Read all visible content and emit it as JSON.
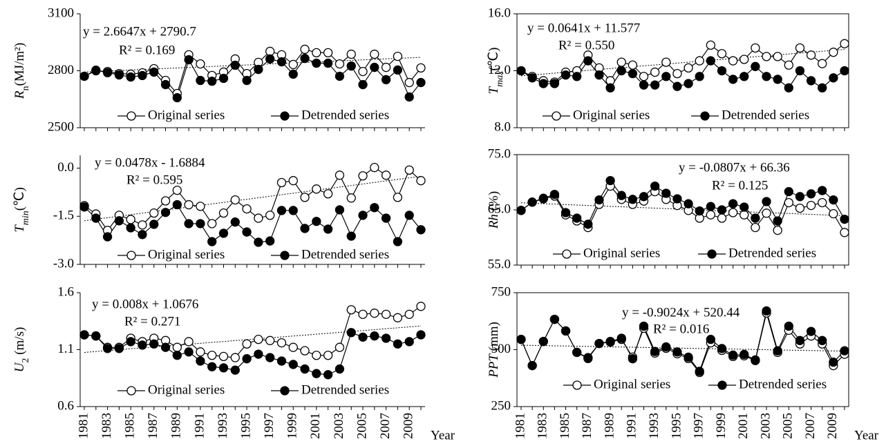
{
  "chart_data": [
    {
      "type": "line",
      "ylabel": [
        {
          "text": "R",
          "style": "italic"
        },
        {
          "text": "n",
          "style": "sub"
        },
        {
          "text": "(MJ/m²)"
        }
      ],
      "x": [
        1981,
        1982,
        1983,
        1984,
        1985,
        1986,
        1987,
        1988,
        1989,
        1990,
        1991,
        1992,
        1993,
        1994,
        1995,
        1996,
        1997,
        1998,
        1999,
        2000,
        2001,
        2002,
        2003,
        2004,
        2005,
        2006,
        2007,
        2008,
        2009,
        2010
      ],
      "ylim": [
        2500,
        3100
      ],
      "yticks": [
        2500,
        2800,
        3100
      ],
      "series": [
        {
          "name": "Original series",
          "color": "#000000",
          "marker": "open",
          "values": [
            2771,
            2800,
            2796,
            2785,
            2782,
            2789,
            2811,
            2749,
            2680,
            2884,
            2836,
            2775,
            2793,
            2862,
            2785,
            2844,
            2902,
            2884,
            2833,
            2913,
            2895,
            2895,
            2836,
            2887,
            2796,
            2887,
            2818,
            2876,
            2738,
            2815
          ]
        },
        {
          "name": "Detrended series",
          "color": "#000000",
          "marker": "filled",
          "values": [
            2771,
            2803,
            2790,
            2778,
            2767,
            2775,
            2793,
            2727,
            2658,
            2858,
            2749,
            2745,
            2760,
            2829,
            2749,
            2807,
            2862,
            2847,
            2782,
            2865,
            2840,
            2840,
            2771,
            2825,
            2727,
            2818,
            2753,
            2804,
            2662,
            2738
          ]
        }
      ],
      "trend": {
        "slope": 2.6647,
        "intercept": 2790.7
      },
      "equation": "y = 2.6647x + 2790.7",
      "r2": "R² = 0.169"
    },
    {
      "type": "line",
      "ylabel": [
        {
          "text": "T",
          "style": "italic"
        },
        {
          "text": "max",
          "style": "sub-italic"
        },
        {
          "text": "(℃)"
        }
      ],
      "x": [
        1981,
        1982,
        1983,
        1984,
        1985,
        1986,
        1987,
        1988,
        1989,
        1990,
        1991,
        1992,
        1993,
        1994,
        1995,
        1996,
        1997,
        1998,
        1999,
        2000,
        2001,
        2002,
        2003,
        2004,
        2005,
        2006,
        2007,
        2008,
        2009,
        2010
      ],
      "ylim": [
        8,
        16
      ],
      "yticks": [
        {
          "value": 8,
          "label": "8.0"
        },
        {
          "value": 12,
          "label": "12.0"
        },
        {
          "value": 16,
          "label": "16.0"
        }
      ],
      "series": [
        {
          "name": "Original series",
          "color": "#000000",
          "marker": "open",
          "values": [
            12.0,
            11.6,
            11.3,
            11.2,
            11.9,
            12.0,
            13.1,
            12.2,
            11.3,
            12.6,
            12.4,
            11.6,
            11.9,
            12.6,
            11.8,
            12.2,
            12.7,
            13.8,
            13.2,
            12.7,
            12.8,
            13.6,
            13.0,
            13.0,
            12.4,
            13.6,
            13.1,
            12.5,
            13.3,
            13.9
          ]
        },
        {
          "name": "Detrended series",
          "color": "#000000",
          "marker": "filled",
          "values": [
            12.0,
            11.5,
            11.1,
            11.1,
            11.7,
            11.6,
            12.7,
            11.7,
            10.8,
            12.0,
            11.8,
            11.0,
            11.0,
            11.6,
            10.9,
            11.1,
            11.6,
            12.7,
            12.0,
            11.4,
            11.6,
            12.3,
            11.6,
            11.4,
            10.8,
            12.0,
            11.3,
            10.8,
            11.5,
            12.0
          ]
        }
      ],
      "trend": {
        "slope": 0.0641,
        "intercept": 11.577
      },
      "equation": "y = 0.0641x + 11.577",
      "r2": "R² = 0.550"
    },
    {
      "type": "line",
      "ylabel": [
        {
          "text": "T",
          "style": "italic"
        },
        {
          "text": "min",
          "style": "sub-italic"
        },
        {
          "text": "(℃)"
        }
      ],
      "x": [
        1981,
        1982,
        1983,
        1984,
        1985,
        1986,
        1987,
        1988,
        1989,
        1990,
        1991,
        1992,
        1993,
        1994,
        1995,
        1996,
        1997,
        1998,
        1999,
        2000,
        2001,
        2002,
        2003,
        2004,
        2005,
        2006,
        2007,
        2008,
        2009,
        2010
      ],
      "ylim": [
        -3,
        0.4
      ],
      "yticks": [
        {
          "value": -3,
          "label": "-3.0"
        },
        {
          "value": -1.5,
          "label": "-1.5"
        },
        {
          "value": 0,
          "label": "0.0"
        }
      ],
      "series": [
        {
          "name": "Original series",
          "color": "#000000",
          "marker": "open",
          "values": [
            -1.17,
            -1.43,
            -1.94,
            -1.47,
            -1.6,
            -1.77,
            -1.4,
            -1.02,
            -0.69,
            -1.14,
            -1.19,
            -1.73,
            -1.4,
            -0.99,
            -1.27,
            -1.56,
            -1.47,
            -0.45,
            -0.39,
            -0.91,
            -0.65,
            -0.8,
            -0.22,
            -0.93,
            -0.24,
            0.02,
            -0.22,
            -0.91,
            -0.06,
            -0.39
          ]
        },
        {
          "name": "Detrended series",
          "color": "#000000",
          "marker": "filled",
          "values": [
            -1.21,
            -1.56,
            -2.14,
            -1.64,
            -1.86,
            -2.07,
            -1.75,
            -1.38,
            -1.14,
            -1.73,
            -1.73,
            -2.29,
            -2.03,
            -1.68,
            -1.99,
            -2.31,
            -2.27,
            -1.32,
            -1.32,
            -1.88,
            -1.66,
            -1.9,
            -1.3,
            -2.12,
            -1.47,
            -1.23,
            -1.56,
            -2.29,
            -1.47,
            -1.92
          ]
        }
      ],
      "trend": {
        "slope": 0.0478,
        "intercept": -1.6884
      },
      "equation": "y = 0.0478x - 1.6884",
      "r2": "R² = 0.595"
    },
    {
      "type": "line",
      "ylabel": [
        {
          "text": "Rh",
          "style": "italic"
        },
        {
          "text": " (%)"
        }
      ],
      "x": [
        1981,
        1982,
        1983,
        1984,
        1985,
        1986,
        1987,
        1988,
        1989,
        1990,
        1991,
        1992,
        1993,
        1994,
        1995,
        1996,
        1997,
        1998,
        1999,
        2000,
        2001,
        2002,
        2003,
        2004,
        2005,
        2006,
        2007,
        2008,
        2009,
        2010
      ],
      "ylim": [
        55,
        75
      ],
      "yticks": [
        {
          "value": 55,
          "label": "55.0"
        },
        {
          "value": 65,
          "label": "65.0"
        },
        {
          "value": 75,
          "label": "75.0"
        }
      ],
      "series": [
        {
          "name": "Original series",
          "color": "#000000",
          "marker": "open",
          "values": [
            64.9,
            66.4,
            67.0,
            67.5,
            64.1,
            63.0,
            61.8,
            66.0,
            69.3,
            66.9,
            66.0,
            66.6,
            68.3,
            66.9,
            65.8,
            64.9,
            63.5,
            64.1,
            63.5,
            64.5,
            64.1,
            61.8,
            64.4,
            61.3,
            66.3,
            65.3,
            65.8,
            66.3,
            64.3,
            60.9
          ]
        },
        {
          "name": "Detrended series",
          "color": "#000000",
          "marker": "filled",
          "values": [
            64.9,
            66.4,
            67.1,
            67.8,
            64.5,
            63.5,
            62.4,
            66.8,
            70.3,
            67.6,
            66.9,
            67.4,
            69.3,
            68.0,
            67.0,
            66.1,
            64.8,
            65.6,
            65.0,
            66.1,
            65.5,
            63.5,
            66.5,
            63.0,
            68.3,
            67.4,
            67.9,
            68.5,
            66.8,
            63.3
          ]
        }
      ],
      "trend": {
        "slope": -0.0807,
        "intercept": 66.36
      },
      "equation": "y = -0.0807x + 66.36",
      "r2": "R² = 0.125"
    },
    {
      "type": "line",
      "ylabel": [
        {
          "text": "U",
          "style": "italic"
        },
        {
          "text": "2",
          "style": "sub"
        },
        {
          "text": " (m/s)"
        }
      ],
      "x": [
        1981,
        1982,
        1983,
        1984,
        1985,
        1986,
        1987,
        1988,
        1989,
        1990,
        1991,
        1992,
        1993,
        1994,
        1995,
        1996,
        1997,
        1998,
        1999,
        2000,
        2001,
        2002,
        2003,
        2004,
        2005,
        2006,
        2007,
        2008,
        2009,
        2010
      ],
      "xticks": [
        1981,
        1983,
        1985,
        1987,
        1989,
        1991,
        1993,
        1995,
        1997,
        1999,
        2001,
        2003,
        2005,
        2007,
        2009
      ],
      "xlabel": "Year",
      "ylim": [
        0.6,
        1.6
      ],
      "yticks": [
        0.6,
        1.1,
        1.6
      ],
      "series": [
        {
          "name": "Original series",
          "color": "#000000",
          "marker": "open",
          "values": [
            1.23,
            1.22,
            1.12,
            1.12,
            1.2,
            1.17,
            1.2,
            1.18,
            1.12,
            1.17,
            1.08,
            1.05,
            1.04,
            1.03,
            1.15,
            1.19,
            1.18,
            1.16,
            1.12,
            1.09,
            1.05,
            1.05,
            1.12,
            1.45,
            1.41,
            1.42,
            1.41,
            1.38,
            1.41,
            1.48
          ]
        },
        {
          "name": "Detrended series",
          "color": "#000000",
          "marker": "filled",
          "values": [
            1.23,
            1.22,
            1.11,
            1.11,
            1.17,
            1.14,
            1.15,
            1.12,
            1.05,
            1.08,
            1.0,
            0.95,
            0.94,
            0.92,
            1.02,
            1.06,
            1.03,
            1.0,
            0.97,
            0.93,
            0.89,
            0.88,
            0.93,
            1.25,
            1.21,
            1.22,
            1.2,
            1.15,
            1.17,
            1.23
          ]
        }
      ],
      "trend": {
        "slope": 0.008,
        "intercept": 1.0676
      },
      "equation": "y = 0.008x + 1.0676",
      "r2": "R² = 0.271"
    },
    {
      "type": "line",
      "ylabel": [
        {
          "text": "PPT",
          "style": "italic"
        },
        {
          "text": " (mm)"
        }
      ],
      "x": [
        1981,
        1982,
        1983,
        1984,
        1985,
        1986,
        1987,
        1988,
        1989,
        1990,
        1991,
        1992,
        1993,
        1994,
        1995,
        1996,
        1997,
        1998,
        1999,
        2000,
        2001,
        2002,
        2003,
        2004,
        2005,
        2006,
        2007,
        2008,
        2009,
        2010
      ],
      "xticks": [
        1981,
        1983,
        1985,
        1987,
        1989,
        1991,
        1993,
        1995,
        1997,
        1999,
        2001,
        2003,
        2005,
        2007,
        2009
      ],
      "xlabel": "Year",
      "ylim": [
        250,
        750
      ],
      "yticks": [
        250,
        500,
        750
      ],
      "series": [
        {
          "name": "Original series",
          "color": "#000000",
          "marker": "open",
          "values": [
            545,
            430,
            536,
            633,
            582,
            488,
            461,
            527,
            533,
            545,
            467,
            594,
            485,
            506,
            482,
            461,
            400,
            530,
            497,
            470,
            473,
            452,
            661,
            488,
            585,
            525,
            560,
            525,
            430,
            480
          ]
        },
        {
          "name": "Detrended series",
          "color": "#000000",
          "marker": "filled",
          "values": [
            545,
            430,
            536,
            633,
            582,
            488,
            465,
            527,
            536,
            550,
            460,
            603,
            492,
            512,
            490,
            467,
            405,
            545,
            505,
            476,
            479,
            455,
            670,
            495,
            603,
            540,
            580,
            540,
            445,
            495
          ]
        }
      ],
      "trend": {
        "slope": -0.9024,
        "intercept": 520.44
      },
      "equation": "y = -0.9024x + 520.44",
      "r2": "R² = 0.016"
    }
  ]
}
